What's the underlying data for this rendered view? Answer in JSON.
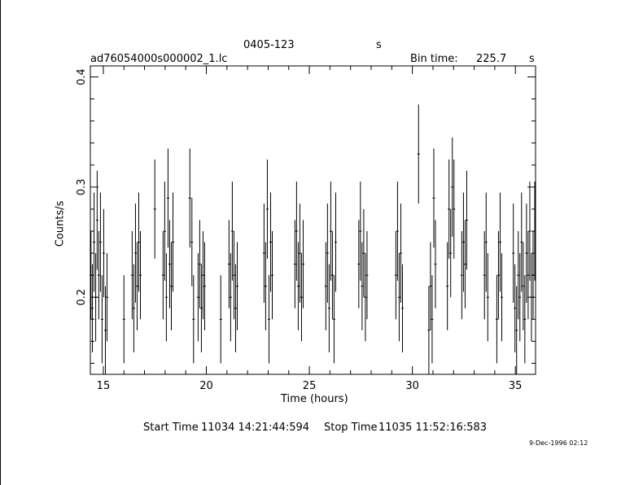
{
  "header": {
    "source": "0405-123",
    "source_unit": "s",
    "file": "ad76054000s000002_1.lc",
    "bin_label": "Bin time:",
    "bin_value": "225.7",
    "bin_unit": "s"
  },
  "footer": {
    "start_label": "Start Time",
    "start_value": "11034 14:21:44:594",
    "stop_label": "Stop Time",
    "stop_value": "11035 11:52:16:583",
    "date_stamp": "9-Dec-1996 02:12"
  },
  "chart_data": {
    "type": "scatter",
    "xlabel": "Time (hours)",
    "ylabel": "Counts/s",
    "xlim": [
      14.37,
      35.98
    ],
    "ylim": [
      0.13,
      0.41
    ],
    "xticks": [
      15,
      20,
      25,
      30,
      35
    ],
    "yticks": [
      0.2,
      0.3,
      0.4
    ],
    "x_minor_step": 1,
    "y_minor_step": 0.02,
    "points": [
      [
        14.4,
        0.22,
        0.04
      ],
      [
        14.47,
        0.19,
        0.04
      ],
      [
        14.55,
        0.25,
        0.045
      ],
      [
        14.63,
        0.2,
        0.04
      ],
      [
        14.7,
        0.27,
        0.045
      ],
      [
        14.78,
        0.22,
        0.04
      ],
      [
        14.86,
        0.25,
        0.045
      ],
      [
        14.94,
        0.18,
        0.04
      ],
      [
        15.02,
        0.24,
        0.04
      ],
      [
        15.1,
        0.17,
        0.04
      ],
      [
        15.18,
        0.2,
        0.04
      ],
      [
        16.0,
        0.18,
        0.04
      ],
      [
        16.4,
        0.22,
        0.04
      ],
      [
        16.48,
        0.19,
        0.04
      ],
      [
        16.56,
        0.24,
        0.045
      ],
      [
        16.64,
        0.21,
        0.04
      ],
      [
        16.72,
        0.25,
        0.045
      ],
      [
        16.8,
        0.22,
        0.04
      ],
      [
        17.5,
        0.28,
        0.045
      ],
      [
        17.9,
        0.22,
        0.04
      ],
      [
        17.98,
        0.26,
        0.045
      ],
      [
        18.06,
        0.2,
        0.04
      ],
      [
        18.14,
        0.29,
        0.045
      ],
      [
        18.22,
        0.23,
        0.04
      ],
      [
        18.3,
        0.21,
        0.04
      ],
      [
        18.38,
        0.25,
        0.045
      ],
      [
        19.2,
        0.29,
        0.045
      ],
      [
        19.3,
        0.25,
        0.04
      ],
      [
        19.38,
        0.18,
        0.04
      ],
      [
        19.6,
        0.2,
        0.04
      ],
      [
        19.68,
        0.23,
        0.04
      ],
      [
        19.76,
        0.19,
        0.04
      ],
      [
        19.84,
        0.22,
        0.04
      ],
      [
        19.92,
        0.21,
        0.04
      ],
      [
        20.7,
        0.18,
        0.04
      ],
      [
        21.1,
        0.23,
        0.04
      ],
      [
        21.18,
        0.2,
        0.04
      ],
      [
        21.26,
        0.26,
        0.045
      ],
      [
        21.34,
        0.22,
        0.04
      ],
      [
        21.42,
        0.19,
        0.04
      ],
      [
        21.5,
        0.21,
        0.04
      ],
      [
        22.8,
        0.24,
        0.045
      ],
      [
        22.88,
        0.21,
        0.04
      ],
      [
        22.96,
        0.28,
        0.045
      ],
      [
        23.04,
        0.18,
        0.04
      ],
      [
        23.12,
        0.25,
        0.045
      ],
      [
        23.2,
        0.22,
        0.04
      ],
      [
        24.3,
        0.23,
        0.04
      ],
      [
        24.38,
        0.26,
        0.045
      ],
      [
        24.46,
        0.21,
        0.04
      ],
      [
        24.54,
        0.24,
        0.045
      ],
      [
        24.62,
        0.2,
        0.04
      ],
      [
        24.7,
        0.23,
        0.04
      ],
      [
        25.8,
        0.21,
        0.04
      ],
      [
        25.88,
        0.24,
        0.045
      ],
      [
        25.96,
        0.19,
        0.04
      ],
      [
        26.04,
        0.26,
        0.045
      ],
      [
        26.12,
        0.22,
        0.04
      ],
      [
        26.2,
        0.18,
        0.04
      ],
      [
        26.28,
        0.25,
        0.045
      ],
      [
        27.4,
        0.23,
        0.04
      ],
      [
        27.48,
        0.26,
        0.045
      ],
      [
        27.56,
        0.21,
        0.04
      ],
      [
        27.64,
        0.24,
        0.04
      ],
      [
        27.72,
        0.2,
        0.04
      ],
      [
        27.8,
        0.22,
        0.04
      ],
      [
        29.2,
        0.22,
        0.04
      ],
      [
        29.28,
        0.26,
        0.045
      ],
      [
        29.36,
        0.2,
        0.04
      ],
      [
        29.44,
        0.24,
        0.045
      ],
      [
        29.52,
        0.19,
        0.04
      ],
      [
        30.3,
        0.33,
        0.045
      ],
      [
        30.8,
        0.17,
        0.04
      ],
      [
        30.88,
        0.21,
        0.04
      ],
      [
        30.96,
        0.18,
        0.04
      ],
      [
        31.04,
        0.29,
        0.045
      ],
      [
        31.12,
        0.23,
        0.04
      ],
      [
        31.7,
        0.21,
        0.04
      ],
      [
        31.78,
        0.28,
        0.045
      ],
      [
        31.86,
        0.24,
        0.04
      ],
      [
        31.94,
        0.3,
        0.045
      ],
      [
        32.02,
        0.28,
        0.045
      ],
      [
        32.4,
        0.22,
        0.04
      ],
      [
        32.48,
        0.25,
        0.045
      ],
      [
        32.56,
        0.23,
        0.04
      ],
      [
        32.64,
        0.27,
        0.045
      ],
      [
        33.5,
        0.22,
        0.04
      ],
      [
        33.58,
        0.25,
        0.045
      ],
      [
        33.66,
        0.2,
        0.04
      ],
      [
        34.1,
        0.18,
        0.04
      ],
      [
        34.18,
        0.22,
        0.04
      ],
      [
        34.26,
        0.25,
        0.045
      ],
      [
        34.34,
        0.2,
        0.04
      ],
      [
        34.9,
        0.24,
        0.045
      ],
      [
        34.98,
        0.19,
        0.04
      ],
      [
        35.06,
        0.17,
        0.04
      ],
      [
        35.14,
        0.22,
        0.04
      ],
      [
        35.22,
        0.2,
        0.04
      ],
      [
        35.3,
        0.25,
        0.045
      ],
      [
        35.38,
        0.21,
        0.04
      ],
      [
        35.46,
        0.18,
        0.04
      ],
      [
        35.54,
        0.24,
        0.045
      ],
      [
        35.62,
        0.22,
        0.04
      ],
      [
        35.7,
        0.26,
        0.045
      ],
      [
        35.78,
        0.2,
        0.04
      ],
      [
        35.86,
        0.22,
        0.04
      ],
      [
        35.94,
        0.26,
        0.045
      ]
    ]
  }
}
